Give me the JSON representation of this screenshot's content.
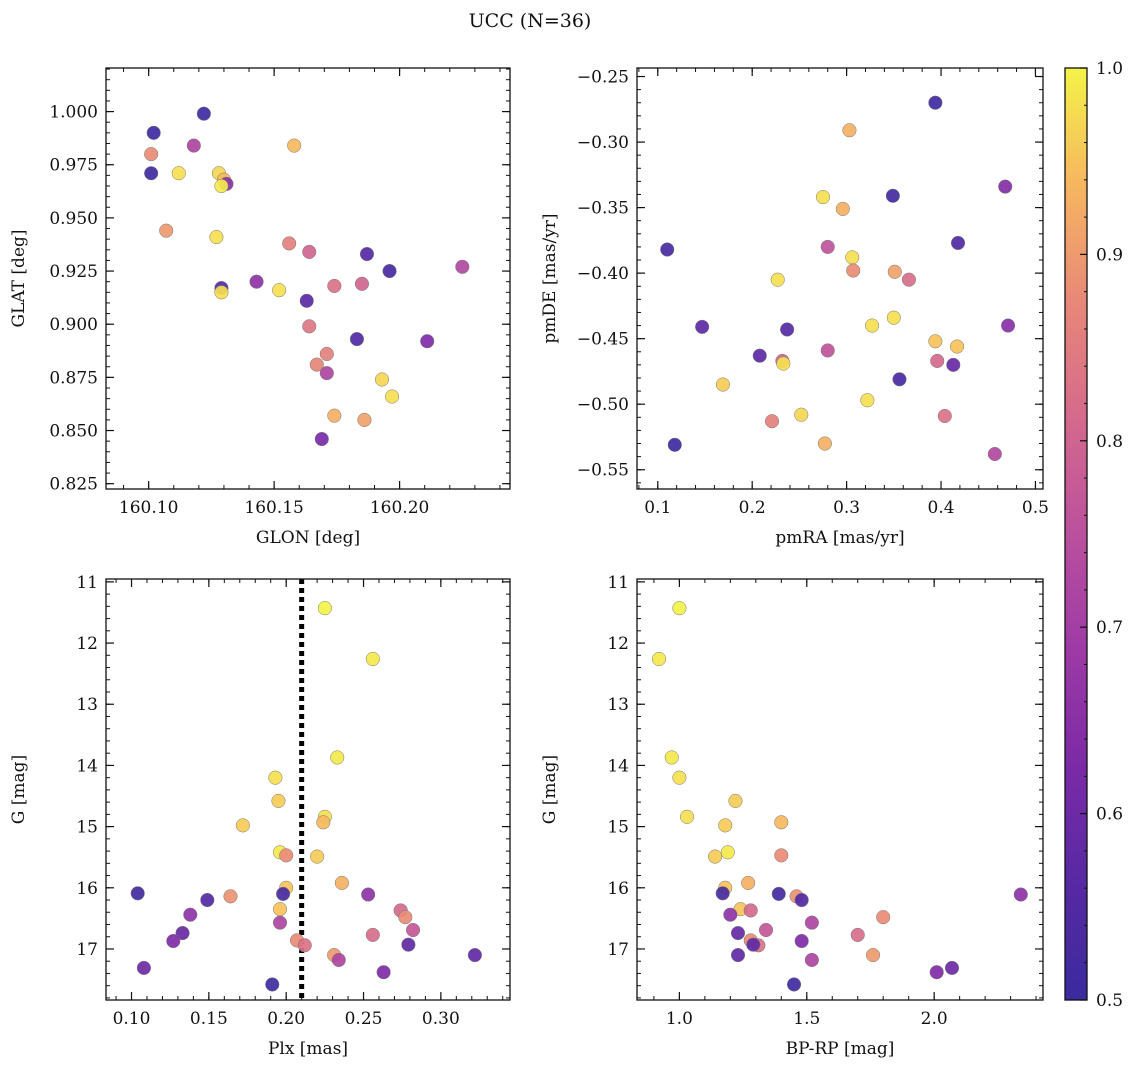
{
  "figure": {
    "title": "UCC (N=36)"
  },
  "colorbar": {
    "min": 0.5,
    "max": 1.0,
    "ticks": [
      0.5,
      0.6,
      0.7,
      0.8,
      0.9,
      1.0
    ],
    "tick_labels": [
      "0.5",
      "0.6",
      "0.7",
      "0.8",
      "0.9",
      "1.0"
    ],
    "colormap": "plasma"
  },
  "chart_data": [
    {
      "type": "scatter",
      "title": "",
      "xlabel": "GLON [deg]",
      "ylabel": "GLAT [deg]",
      "xlim": [
        160.083,
        160.244
      ],
      "ylim": [
        0.8225,
        1.0205
      ],
      "y_inverted": false,
      "xticks": [
        160.1,
        160.15,
        160.2
      ],
      "xtick_labels": [
        "160.10",
        "160.15",
        "160.20"
      ],
      "yticks": [
        0.825,
        0.85,
        0.875,
        0.9,
        0.925,
        0.95,
        0.975,
        1.0
      ],
      "ytick_labels": [
        "0.825",
        "0.850",
        "0.875",
        "0.900",
        "0.925",
        "0.950",
        "0.975",
        "1.000"
      ],
      "points": [
        {
          "x": 160.102,
          "y": 0.99,
          "c": 0.51
        },
        {
          "x": 160.122,
          "y": 0.999,
          "c": 0.51
        },
        {
          "x": 160.101,
          "y": 0.971,
          "c": 0.51
        },
        {
          "x": 160.101,
          "y": 0.98,
          "c": 0.88
        },
        {
          "x": 160.118,
          "y": 0.984,
          "c": 0.72
        },
        {
          "x": 160.112,
          "y": 0.971,
          "c": 0.98
        },
        {
          "x": 160.128,
          "y": 0.971,
          "c": 0.97
        },
        {
          "x": 160.13,
          "y": 0.968,
          "c": 0.94
        },
        {
          "x": 160.131,
          "y": 0.966,
          "c": 0.65
        },
        {
          "x": 160.129,
          "y": 0.965,
          "c": 0.99
        },
        {
          "x": 160.107,
          "y": 0.944,
          "c": 0.9
        },
        {
          "x": 160.127,
          "y": 0.941,
          "c": 0.98
        },
        {
          "x": 160.129,
          "y": 0.917,
          "c": 0.55
        },
        {
          "x": 160.129,
          "y": 0.915,
          "c": 0.98
        },
        {
          "x": 160.143,
          "y": 0.92,
          "c": 0.66
        },
        {
          "x": 160.152,
          "y": 0.916,
          "c": 0.98
        },
        {
          "x": 160.158,
          "y": 0.984,
          "c": 0.94
        },
        {
          "x": 160.156,
          "y": 0.938,
          "c": 0.86
        },
        {
          "x": 160.164,
          "y": 0.934,
          "c": 0.8
        },
        {
          "x": 160.187,
          "y": 0.933,
          "c": 0.56
        },
        {
          "x": 160.196,
          "y": 0.925,
          "c": 0.53
        },
        {
          "x": 160.163,
          "y": 0.911,
          "c": 0.57
        },
        {
          "x": 160.174,
          "y": 0.918,
          "c": 0.83
        },
        {
          "x": 160.185,
          "y": 0.919,
          "c": 0.8
        },
        {
          "x": 160.225,
          "y": 0.927,
          "c": 0.73
        },
        {
          "x": 160.164,
          "y": 0.899,
          "c": 0.84
        },
        {
          "x": 160.183,
          "y": 0.893,
          "c": 0.55
        },
        {
          "x": 160.211,
          "y": 0.892,
          "c": 0.63
        },
        {
          "x": 160.171,
          "y": 0.886,
          "c": 0.86
        },
        {
          "x": 160.167,
          "y": 0.881,
          "c": 0.87
        },
        {
          "x": 160.171,
          "y": 0.877,
          "c": 0.72
        },
        {
          "x": 160.193,
          "y": 0.874,
          "c": 0.97
        },
        {
          "x": 160.197,
          "y": 0.866,
          "c": 0.98
        },
        {
          "x": 160.174,
          "y": 0.857,
          "c": 0.93
        },
        {
          "x": 160.186,
          "y": 0.855,
          "c": 0.91
        },
        {
          "x": 160.169,
          "y": 0.846,
          "c": 0.62
        }
      ]
    },
    {
      "type": "scatter",
      "title": "",
      "xlabel": "pmRA [mas/yr]",
      "ylabel": "pmDE [mas/yr]",
      "xlim": [
        0.078,
        0.508
      ],
      "ylim": [
        -0.5647,
        -0.2435
      ],
      "y_inverted": false,
      "xticks": [
        0.1,
        0.2,
        0.3,
        0.4,
        0.5
      ],
      "xtick_labels": [
        "0.1",
        "0.2",
        "0.3",
        "0.4",
        "0.5"
      ],
      "yticks": [
        -0.55,
        -0.5,
        -0.45,
        -0.4,
        -0.35,
        -0.3,
        -0.25
      ],
      "ytick_labels": [
        "−0.55",
        "−0.50",
        "−0.45",
        "−0.40",
        "−0.35",
        "−0.30",
        "−0.25"
      ],
      "points": [
        {
          "x": 0.394,
          "y": -0.27,
          "c": 0.51
        },
        {
          "x": 0.303,
          "y": -0.291,
          "c": 0.93
        },
        {
          "x": 0.349,
          "y": -0.341,
          "c": 0.52
        },
        {
          "x": 0.468,
          "y": -0.334,
          "c": 0.64
        },
        {
          "x": 0.275,
          "y": -0.342,
          "c": 0.98
        },
        {
          "x": 0.296,
          "y": -0.351,
          "c": 0.93
        },
        {
          "x": 0.11,
          "y": -0.382,
          "c": 0.53
        },
        {
          "x": 0.28,
          "y": -0.38,
          "c": 0.76
        },
        {
          "x": 0.418,
          "y": -0.377,
          "c": 0.55
        },
        {
          "x": 0.306,
          "y": -0.388,
          "c": 0.98
        },
        {
          "x": 0.307,
          "y": -0.398,
          "c": 0.88
        },
        {
          "x": 0.351,
          "y": -0.399,
          "c": 0.91
        },
        {
          "x": 0.366,
          "y": -0.405,
          "c": 0.82
        },
        {
          "x": 0.227,
          "y": -0.405,
          "c": 0.98
        },
        {
          "x": 0.147,
          "y": -0.441,
          "c": 0.57
        },
        {
          "x": 0.237,
          "y": -0.443,
          "c": 0.56
        },
        {
          "x": 0.327,
          "y": -0.44,
          "c": 0.98
        },
        {
          "x": 0.35,
          "y": -0.434,
          "c": 0.98
        },
        {
          "x": 0.471,
          "y": -0.44,
          "c": 0.65
        },
        {
          "x": 0.394,
          "y": -0.452,
          "c": 0.95
        },
        {
          "x": 0.417,
          "y": -0.456,
          "c": 0.95
        },
        {
          "x": 0.28,
          "y": -0.459,
          "c": 0.76
        },
        {
          "x": 0.208,
          "y": -0.463,
          "c": 0.57
        },
        {
          "x": 0.232,
          "y": -0.467,
          "c": 0.8
        },
        {
          "x": 0.233,
          "y": -0.469,
          "c": 0.98
        },
        {
          "x": 0.396,
          "y": -0.467,
          "c": 0.81
        },
        {
          "x": 0.413,
          "y": -0.47,
          "c": 0.59
        },
        {
          "x": 0.356,
          "y": -0.481,
          "c": 0.53
        },
        {
          "x": 0.169,
          "y": -0.485,
          "c": 0.96
        },
        {
          "x": 0.322,
          "y": -0.497,
          "c": 0.98
        },
        {
          "x": 0.252,
          "y": -0.508,
          "c": 0.97
        },
        {
          "x": 0.404,
          "y": -0.509,
          "c": 0.83
        },
        {
          "x": 0.221,
          "y": -0.513,
          "c": 0.86
        },
        {
          "x": 0.118,
          "y": -0.531,
          "c": 0.51
        },
        {
          "x": 0.277,
          "y": -0.53,
          "c": 0.93
        },
        {
          "x": 0.457,
          "y": -0.538,
          "c": 0.73
        }
      ]
    },
    {
      "type": "scatter",
      "title": "",
      "xlabel": "Plx [mas]",
      "ylabel": "G [mag]",
      "xlim": [
        0.0835,
        0.3447
      ],
      "ylim": [
        17.834,
        10.953
      ],
      "y_inverted": true,
      "xticks": [
        0.1,
        0.15,
        0.2,
        0.25,
        0.3
      ],
      "xtick_labels": [
        "0.10",
        "0.15",
        "0.20",
        "0.25",
        "0.30"
      ],
      "yticks": [
        11,
        12,
        13,
        14,
        15,
        16,
        17
      ],
      "ytick_labels": [
        "11",
        "12",
        "13",
        "14",
        "15",
        "16",
        "17"
      ],
      "vline": {
        "x": 0.21,
        "style": "dotted"
      },
      "points": [
        {
          "x": 0.225,
          "y": 11.43,
          "c": 1.0
        },
        {
          "x": 0.256,
          "y": 12.26,
          "c": 0.99
        },
        {
          "x": 0.233,
          "y": 13.87,
          "c": 0.99
        },
        {
          "x": 0.193,
          "y": 14.2,
          "c": 0.98
        },
        {
          "x": 0.195,
          "y": 14.58,
          "c": 0.96
        },
        {
          "x": 0.225,
          "y": 14.84,
          "c": 0.98
        },
        {
          "x": 0.224,
          "y": 14.93,
          "c": 0.94
        },
        {
          "x": 0.172,
          "y": 14.98,
          "c": 0.96
        },
        {
          "x": 0.196,
          "y": 15.42,
          "c": 0.99
        },
        {
          "x": 0.2,
          "y": 15.47,
          "c": 0.88
        },
        {
          "x": 0.22,
          "y": 15.49,
          "c": 0.96
        },
        {
          "x": 0.236,
          "y": 15.92,
          "c": 0.93
        },
        {
          "x": 0.2,
          "y": 16.0,
          "c": 0.95
        },
        {
          "x": 0.198,
          "y": 16.1,
          "c": 0.53
        },
        {
          "x": 0.104,
          "y": 16.09,
          "c": 0.52
        },
        {
          "x": 0.164,
          "y": 16.14,
          "c": 0.89
        },
        {
          "x": 0.149,
          "y": 16.2,
          "c": 0.55
        },
        {
          "x": 0.253,
          "y": 16.11,
          "c": 0.66
        },
        {
          "x": 0.196,
          "y": 16.35,
          "c": 0.95
        },
        {
          "x": 0.274,
          "y": 16.37,
          "c": 0.81
        },
        {
          "x": 0.277,
          "y": 16.48,
          "c": 0.88
        },
        {
          "x": 0.138,
          "y": 16.44,
          "c": 0.66
        },
        {
          "x": 0.196,
          "y": 16.57,
          "c": 0.72
        },
        {
          "x": 0.282,
          "y": 16.69,
          "c": 0.77
        },
        {
          "x": 0.133,
          "y": 16.74,
          "c": 0.59
        },
        {
          "x": 0.256,
          "y": 16.77,
          "c": 0.82
        },
        {
          "x": 0.127,
          "y": 16.87,
          "c": 0.63
        },
        {
          "x": 0.207,
          "y": 16.86,
          "c": 0.88
        },
        {
          "x": 0.212,
          "y": 16.94,
          "c": 0.83
        },
        {
          "x": 0.279,
          "y": 16.93,
          "c": 0.58
        },
        {
          "x": 0.231,
          "y": 17.1,
          "c": 0.9
        },
        {
          "x": 0.234,
          "y": 17.18,
          "c": 0.72
        },
        {
          "x": 0.322,
          "y": 17.1,
          "c": 0.58
        },
        {
          "x": 0.108,
          "y": 17.31,
          "c": 0.6
        },
        {
          "x": 0.263,
          "y": 17.38,
          "c": 0.63
        },
        {
          "x": 0.191,
          "y": 17.58,
          "c": 0.51
        }
      ]
    },
    {
      "type": "scatter",
      "title": "",
      "xlabel": "BP-RP [mag]",
      "ylabel": "G [mag]",
      "xlim": [
        0.8336,
        2.4272
      ],
      "ylim": [
        17.834,
        10.953
      ],
      "y_inverted": true,
      "xticks": [
        1.0,
        1.5,
        2.0
      ],
      "xtick_labels": [
        "1.0",
        "1.5",
        "2.0"
      ],
      "yticks": [
        11,
        12,
        13,
        14,
        15,
        16,
        17
      ],
      "ytick_labels": [
        "11",
        "12",
        "13",
        "14",
        "15",
        "16",
        "17"
      ],
      "points": [
        {
          "x": 1.0,
          "y": 11.43,
          "c": 1.0
        },
        {
          "x": 0.92,
          "y": 12.26,
          "c": 0.99
        },
        {
          "x": 0.97,
          "y": 13.87,
          "c": 0.99
        },
        {
          "x": 1.0,
          "y": 14.2,
          "c": 0.98
        },
        {
          "x": 1.22,
          "y": 14.58,
          "c": 0.96
        },
        {
          "x": 1.03,
          "y": 14.84,
          "c": 0.98
        },
        {
          "x": 1.4,
          "y": 14.93,
          "c": 0.94
        },
        {
          "x": 1.18,
          "y": 14.98,
          "c": 0.96
        },
        {
          "x": 1.19,
          "y": 15.42,
          "c": 0.99
        },
        {
          "x": 1.4,
          "y": 15.47,
          "c": 0.88
        },
        {
          "x": 1.14,
          "y": 15.49,
          "c": 0.96
        },
        {
          "x": 1.27,
          "y": 15.92,
          "c": 0.93
        },
        {
          "x": 1.18,
          "y": 16.0,
          "c": 0.95
        },
        {
          "x": 1.17,
          "y": 16.09,
          "c": 0.53
        },
        {
          "x": 1.39,
          "y": 16.1,
          "c": 0.52
        },
        {
          "x": 1.46,
          "y": 16.14,
          "c": 0.89
        },
        {
          "x": 1.48,
          "y": 16.2,
          "c": 0.55
        },
        {
          "x": 2.34,
          "y": 16.11,
          "c": 0.66
        },
        {
          "x": 1.24,
          "y": 16.35,
          "c": 0.95
        },
        {
          "x": 1.28,
          "y": 16.37,
          "c": 0.81
        },
        {
          "x": 1.8,
          "y": 16.48,
          "c": 0.88
        },
        {
          "x": 1.2,
          "y": 16.44,
          "c": 0.66
        },
        {
          "x": 1.52,
          "y": 16.57,
          "c": 0.72
        },
        {
          "x": 1.34,
          "y": 16.69,
          "c": 0.77
        },
        {
          "x": 1.23,
          "y": 16.74,
          "c": 0.59
        },
        {
          "x": 1.7,
          "y": 16.77,
          "c": 0.82
        },
        {
          "x": 1.48,
          "y": 16.87,
          "c": 0.63
        },
        {
          "x": 1.28,
          "y": 16.86,
          "c": 0.88
        },
        {
          "x": 1.31,
          "y": 16.94,
          "c": 0.83
        },
        {
          "x": 1.29,
          "y": 16.93,
          "c": 0.58
        },
        {
          "x": 1.76,
          "y": 17.1,
          "c": 0.9
        },
        {
          "x": 1.52,
          "y": 17.18,
          "c": 0.72
        },
        {
          "x": 1.23,
          "y": 17.1,
          "c": 0.58
        },
        {
          "x": 2.07,
          "y": 17.31,
          "c": 0.6
        },
        {
          "x": 2.01,
          "y": 17.38,
          "c": 0.63
        },
        {
          "x": 1.45,
          "y": 17.58,
          "c": 0.51
        }
      ]
    }
  ]
}
